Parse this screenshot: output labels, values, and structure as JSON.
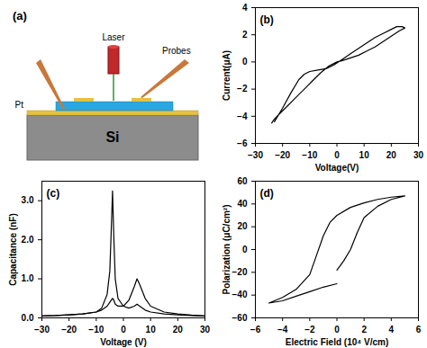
{
  "diagram": {
    "title": "(a)",
    "labels": {
      "laser": "Laser",
      "probes": "Probes",
      "electrode": "Pt",
      "substrate": "Si"
    }
  },
  "chart_data": [
    {
      "type": "line",
      "title": "(b)",
      "x_label": "Voltage(V)",
      "y_label": "Current(μA)",
      "x": [
        -23,
        -20,
        -17,
        -14,
        -12,
        -10,
        -7,
        -4,
        -1,
        2,
        5,
        8,
        11,
        14,
        17,
        20,
        22,
        24,
        25,
        23,
        20,
        17,
        14,
        11,
        8,
        5,
        2,
        0,
        -3,
        -6,
        -9,
        -12,
        -15,
        -18,
        -21,
        -23,
        -24
      ],
      "values": [
        -4.4,
        -3.4,
        -2.3,
        -1.3,
        -0.9,
        -0.7,
        -0.6,
        -0.5,
        -0.2,
        0.2,
        0.6,
        1.0,
        1.4,
        1.8,
        2.1,
        2.4,
        2.6,
        2.6,
        2.5,
        2.3,
        1.9,
        1.5,
        1.1,
        0.8,
        0.5,
        0.3,
        0.1,
        0.0,
        -0.3,
        -0.8,
        -1.4,
        -2.0,
        -2.6,
        -3.2,
        -3.8,
        -4.2,
        -4.5
      ],
      "color": "#000000",
      "xlim": [
        -30,
        30
      ],
      "xticks": [
        -30,
        -20,
        -10,
        0,
        10,
        20,
        30
      ],
      "ylim": [
        -6,
        4
      ],
      "yticks": [
        -6,
        -4,
        -2,
        0,
        2,
        4
      ],
      "grid": false
    },
    {
      "type": "line",
      "title": "(c)",
      "x_label": "Voltage (V)",
      "y_label": "Capacitance (nF)",
      "x": [
        -30,
        -25,
        -20,
        -15,
        -10,
        -8,
        -6,
        -5,
        -4.5,
        -4,
        -3.5,
        -3,
        -2,
        0,
        2,
        4,
        5,
        6,
        8,
        10,
        15,
        20,
        25,
        30
      ],
      "series": [
        {
          "color": "#000000",
          "values": [
            0.05,
            0.06,
            0.08,
            0.1,
            0.15,
            0.25,
            0.6,
            1.2,
            2.2,
            3.25,
            2.0,
            1.0,
            0.5,
            0.3,
            0.25,
            0.3,
            0.35,
            0.3,
            0.2,
            0.15,
            0.1,
            0.08,
            0.06,
            0.05
          ]
        },
        {
          "color": "#000000",
          "values": [
            0.05,
            0.06,
            0.08,
            0.1,
            0.15,
            0.2,
            0.3,
            0.4,
            0.45,
            0.5,
            0.45,
            0.35,
            0.3,
            0.3,
            0.45,
            0.8,
            1.0,
            0.85,
            0.5,
            0.3,
            0.15,
            0.1,
            0.07,
            0.05
          ]
        }
      ],
      "xlim": [
        -30,
        30
      ],
      "xticks": [
        -30,
        -20,
        -10,
        0,
        10,
        20,
        30
      ],
      "ylim": [
        0,
        3.5
      ],
      "yticks": [
        0,
        1,
        2,
        3
      ],
      "grid": false
    },
    {
      "type": "line",
      "title": "(d)",
      "x_label": "Electric Field (10⁴ V/cm)",
      "y_label": "Polarization (μC/cm²)",
      "x": [
        0,
        0.5,
        1,
        1.5,
        2,
        3,
        4,
        5,
        4,
        3,
        2,
        1,
        0,
        -0.5,
        -1,
        -1.5,
        -2,
        -3,
        -4,
        -5,
        -4,
        -3,
        -2,
        -1,
        0
      ],
      "values": [
        -18,
        -10,
        0,
        15,
        28,
        38,
        44,
        47,
        46,
        44,
        41,
        37,
        30,
        24,
        12,
        -5,
        -22,
        -35,
        -42,
        -47,
        -45,
        -41,
        -37,
        -33,
        -30
      ],
      "color": "#000000",
      "xlim": [
        -6,
        6
      ],
      "xticks": [
        -6,
        -4,
        -2,
        0,
        2,
        4,
        6
      ],
      "ylim": [
        -60,
        60
      ],
      "yticks": [
        -60,
        -40,
        -20,
        0,
        20,
        40,
        60
      ],
      "grid": false
    }
  ]
}
